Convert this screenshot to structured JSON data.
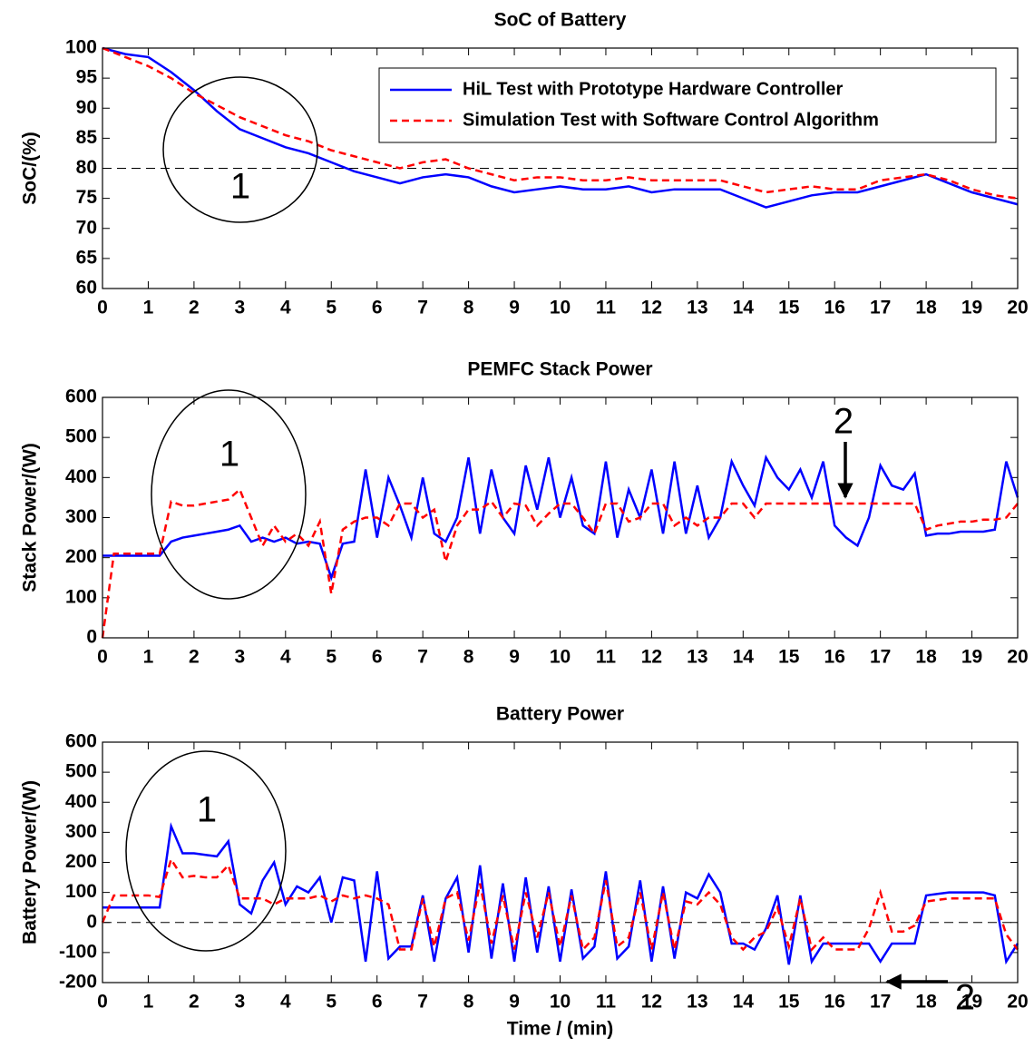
{
  "chart_data": [
    {
      "type": "line",
      "title": "SoC of Battery",
      "ylabel": "SoC/(%)",
      "x": [
        0,
        0.5,
        1,
        1.5,
        2,
        2.5,
        3,
        3.5,
        4,
        4.5,
        5,
        5.5,
        6,
        6.5,
        7,
        7.5,
        8,
        8.5,
        9,
        9.5,
        10,
        10.5,
        11,
        11.5,
        12,
        12.5,
        13,
        13.5,
        14,
        14.5,
        15,
        15.5,
        16,
        16.5,
        17,
        17.5,
        18,
        18.5,
        19,
        19.5,
        20
      ],
      "series": [
        {
          "name": "HiL Test with Prototype Hardware Controller",
          "color": "#0000ff",
          "dash": false,
          "values": [
            100,
            99,
            98.5,
            96,
            93,
            89.5,
            86.5,
            85,
            83.5,
            82.5,
            81,
            79.5,
            78.5,
            77.5,
            78.5,
            79,
            78.5,
            77,
            76,
            76.5,
            77,
            76.5,
            76.5,
            77,
            76,
            76.5,
            76.5,
            76.5,
            75,
            73.5,
            74.5,
            75.5,
            76,
            76,
            77,
            78,
            79,
            77.5,
            76,
            75,
            74
          ]
        },
        {
          "name": "Simulation Test with Software Control Algorithm",
          "color": "#ff0000",
          "dash": true,
          "values": [
            100,
            98.5,
            97,
            95,
            92.5,
            90.5,
            88.5,
            87,
            85.5,
            84.5,
            83,
            82,
            81,
            80,
            81,
            81.5,
            80,
            79,
            78,
            78.5,
            78.5,
            78,
            78,
            78.5,
            78,
            78,
            78,
            78,
            77,
            76,
            76.5,
            77,
            76.5,
            76.5,
            78,
            78.5,
            79,
            78,
            76.5,
            75.5,
            75
          ]
        }
      ],
      "hline": 80,
      "legend": "upper right",
      "xlim": [
        0,
        20
      ],
      "xticks": [
        0,
        1,
        2,
        3,
        4,
        5,
        6,
        7,
        8,
        9,
        10,
        11,
        12,
        13,
        14,
        15,
        16,
        17,
        18,
        19,
        20
      ],
      "ylim": [
        60,
        100
      ],
      "yticks": [
        60,
        65,
        70,
        75,
        80,
        85,
        90,
        95,
        100
      ],
      "annotations": [
        "1"
      ]
    },
    {
      "type": "line",
      "title": "PEMFC Stack Power",
      "ylabel": "Stack Power/(W)",
      "x": [
        0,
        0.25,
        0.5,
        0.75,
        1,
        1.25,
        1.5,
        1.75,
        2,
        2.25,
        2.5,
        2.75,
        3,
        3.25,
        3.5,
        3.75,
        4,
        4.25,
        4.5,
        4.75,
        5,
        5.25,
        5.5,
        5.75,
        6,
        6.25,
        6.5,
        6.75,
        7,
        7.25,
        7.5,
        7.75,
        8,
        8.25,
        8.5,
        8.75,
        9,
        9.25,
        9.5,
        9.75,
        10,
        10.25,
        10.5,
        10.75,
        11,
        11.25,
        11.5,
        11.75,
        12,
        12.25,
        12.5,
        12.75,
        13,
        13.25,
        13.5,
        13.75,
        14,
        14.25,
        14.5,
        14.75,
        15,
        15.25,
        15.5,
        15.75,
        16,
        16.25,
        16.5,
        16.75,
        17,
        17.25,
        17.5,
        17.75,
        18,
        18.25,
        18.5,
        18.75,
        19,
        19.25,
        19.5,
        19.75,
        20
      ],
      "series": [
        {
          "color": "#0000ff",
          "dash": false,
          "values": [
            205,
            205,
            205,
            205,
            205,
            205,
            240,
            250,
            255,
            260,
            265,
            270,
            280,
            240,
            250,
            240,
            250,
            235,
            240,
            235,
            150,
            235,
            240,
            420,
            250,
            400,
            330,
            250,
            400,
            260,
            240,
            300,
            450,
            260,
            420,
            300,
            260,
            430,
            320,
            450,
            300,
            400,
            280,
            260,
            440,
            250,
            370,
            300,
            420,
            260,
            440,
            260,
            380,
            250,
            300,
            440,
            380,
            330,
            450,
            400,
            370,
            420,
            350,
            440,
            280,
            250,
            230,
            300,
            430,
            380,
            370,
            410,
            255,
            260,
            260,
            265,
            265,
            265,
            270,
            440,
            350
          ]
        },
        {
          "color": "#ff0000",
          "dash": true,
          "values": [
            0,
            210,
            210,
            210,
            210,
            210,
            340,
            330,
            330,
            335,
            340,
            345,
            370,
            300,
            230,
            280,
            240,
            260,
            230,
            290,
            110,
            270,
            290,
            300,
            300,
            280,
            335,
            335,
            300,
            320,
            190,
            280,
            320,
            320,
            340,
            300,
            335,
            330,
            280,
            310,
            335,
            335,
            300,
            260,
            335,
            335,
            290,
            300,
            335,
            335,
            280,
            300,
            280,
            300,
            300,
            335,
            335,
            300,
            335,
            335,
            335,
            335,
            335,
            335,
            335,
            335,
            335,
            335,
            335,
            335,
            335,
            335,
            270,
            280,
            285,
            290,
            290,
            295,
            295,
            300,
            335
          ]
        }
      ],
      "xlim": [
        0,
        20
      ],
      "xticks": [
        0,
        1,
        2,
        3,
        4,
        5,
        6,
        7,
        8,
        9,
        10,
        11,
        12,
        13,
        14,
        15,
        16,
        17,
        18,
        19,
        20
      ],
      "ylim": [
        0,
        600
      ],
      "yticks": [
        0,
        100,
        200,
        300,
        400,
        500,
        600
      ],
      "annotations": [
        "1",
        "2"
      ]
    },
    {
      "type": "line",
      "title": "Battery Power",
      "ylabel": "Battery Power/(W)",
      "xlabel": "Time / (min)",
      "x": [
        0,
        0.25,
        0.5,
        0.75,
        1,
        1.25,
        1.5,
        1.75,
        2,
        2.25,
        2.5,
        2.75,
        3,
        3.25,
        3.5,
        3.75,
        4,
        4.25,
        4.5,
        4.75,
        5,
        5.25,
        5.5,
        5.75,
        6,
        6.25,
        6.5,
        6.75,
        7,
        7.25,
        7.5,
        7.75,
        8,
        8.25,
        8.5,
        8.75,
        9,
        9.25,
        9.5,
        9.75,
        10,
        10.25,
        10.5,
        10.75,
        11,
        11.25,
        11.5,
        11.75,
        12,
        12.25,
        12.5,
        12.75,
        13,
        13.25,
        13.5,
        13.75,
        14,
        14.25,
        14.5,
        14.75,
        15,
        15.25,
        15.5,
        15.75,
        16,
        16.25,
        16.5,
        16.75,
        17,
        17.25,
        17.5,
        17.75,
        18,
        18.25,
        18.5,
        18.75,
        19,
        19.25,
        19.5,
        19.75,
        20
      ],
      "series": [
        {
          "color": "#0000ff",
          "dash": false,
          "values": [
            50,
            50,
            50,
            50,
            50,
            50,
            320,
            230,
            230,
            225,
            220,
            270,
            60,
            30,
            140,
            200,
            60,
            120,
            100,
            150,
            0,
            150,
            140,
            -130,
            170,
            -120,
            -80,
            -80,
            90,
            -130,
            80,
            150,
            -100,
            190,
            -120,
            130,
            -130,
            150,
            -100,
            120,
            -130,
            110,
            -120,
            -80,
            170,
            -120,
            -80,
            140,
            -130,
            120,
            -120,
            100,
            80,
            160,
            100,
            -70,
            -70,
            -90,
            -20,
            90,
            -140,
            90,
            -130,
            -70,
            -70,
            -70,
            -70,
            -70,
            -130,
            -70,
            -70,
            -70,
            90,
            95,
            100,
            100,
            100,
            100,
            90,
            -130,
            -70
          ]
        },
        {
          "color": "#ff0000",
          "dash": true,
          "values": [
            0,
            90,
            90,
            90,
            90,
            85,
            210,
            150,
            155,
            150,
            150,
            190,
            80,
            80,
            80,
            60,
            80,
            80,
            80,
            90,
            70,
            90,
            80,
            90,
            80,
            60,
            -90,
            -90,
            80,
            -80,
            80,
            100,
            -60,
            130,
            -70,
            90,
            -90,
            100,
            -50,
            100,
            -80,
            90,
            -90,
            -50,
            140,
            -80,
            -50,
            100,
            -90,
            100,
            -90,
            70,
            60,
            100,
            60,
            -50,
            -90,
            -50,
            -30,
            50,
            -80,
            80,
            -90,
            -50,
            -90,
            -90,
            -90,
            -20,
            100,
            -30,
            -30,
            -10,
            70,
            75,
            80,
            80,
            80,
            80,
            80,
            -40,
            -90
          ]
        }
      ],
      "hline": 0,
      "xlim": [
        0,
        20
      ],
      "xticks": [
        0,
        1,
        2,
        3,
        4,
        5,
        6,
        7,
        8,
        9,
        10,
        11,
        12,
        13,
        14,
        15,
        16,
        17,
        18,
        19,
        20
      ],
      "ylim": [
        -200,
        600
      ],
      "yticks": [
        -200,
        -100,
        0,
        100,
        200,
        300,
        400,
        500,
        600
      ],
      "annotations": [
        "1",
        "2"
      ]
    }
  ]
}
